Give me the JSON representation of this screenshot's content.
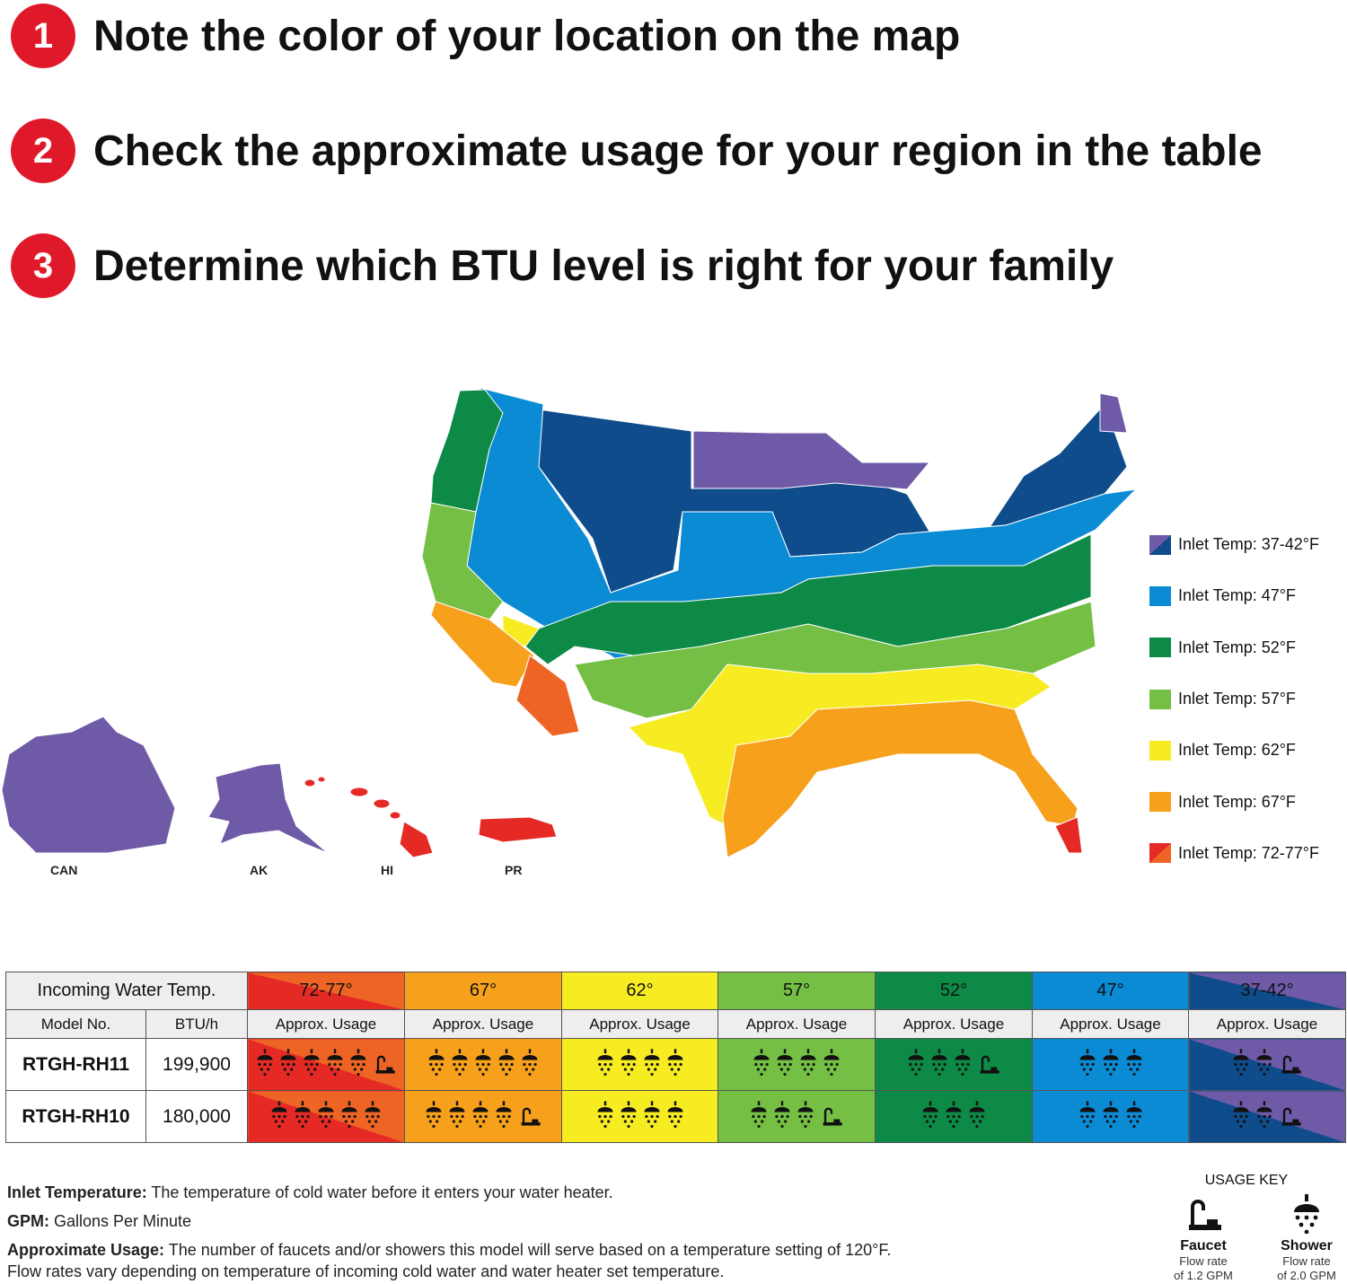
{
  "steps": [
    {
      "num": "1",
      "text": "Note the color of your location on the map"
    },
    {
      "num": "2",
      "text": "Check the approximate usage for your region in the table"
    },
    {
      "num": "3",
      "text": "Determine which BTU level is right for your family"
    }
  ],
  "colors": {
    "purple": "#6f5aa8",
    "navy": "#0f4c8c",
    "blue": "#0a8bd4",
    "dkgreen": "#0d8a45",
    "ltgreen": "#74bf44",
    "yellow": "#f7ec22",
    "orange": "#f6a01c",
    "redorange": "#ee6424",
    "red": "#e52a25",
    "step_red": "#e0192a"
  },
  "map": {
    "regions": [
      {
        "label": "CAN",
        "color": "purple"
      },
      {
        "label": "AK",
        "color": "purple"
      },
      {
        "label": "HI",
        "color": "red"
      },
      {
        "label": "PR",
        "color": "red"
      }
    ]
  },
  "legend": [
    {
      "label": "Inlet Temp: 37-42°F",
      "colors": [
        "purple",
        "navy"
      ]
    },
    {
      "label": "Inlet Temp: 47°F",
      "colors": [
        "blue"
      ]
    },
    {
      "label": "Inlet Temp: 52°F",
      "colors": [
        "dkgreen"
      ]
    },
    {
      "label": "Inlet Temp: 57°F",
      "colors": [
        "ltgreen"
      ]
    },
    {
      "label": "Inlet Temp: 62°F",
      "colors": [
        "yellow"
      ]
    },
    {
      "label": "Inlet Temp: 67°F",
      "colors": [
        "orange"
      ]
    },
    {
      "label": "Inlet Temp: 72-77°F",
      "colors": [
        "red",
        "redorange"
      ]
    }
  ],
  "table": {
    "incoming_label": "Incoming Water Temp.",
    "model_header": "Model No.",
    "btu_header": "BTU/h",
    "usage_header": "Approx. Usage",
    "temps": [
      {
        "label": "72-77°",
        "colors": [
          "red",
          "redorange"
        ]
      },
      {
        "label": "67°",
        "colors": [
          "orange"
        ]
      },
      {
        "label": "62°",
        "colors": [
          "yellow"
        ]
      },
      {
        "label": "57°",
        "colors": [
          "ltgreen"
        ]
      },
      {
        "label": "52°",
        "colors": [
          "dkgreen"
        ]
      },
      {
        "label": "47°",
        "colors": [
          "blue"
        ]
      },
      {
        "label": "37-42°",
        "colors": [
          "navy",
          "purple"
        ]
      }
    ],
    "rows": [
      {
        "model": "RTGH-RH11",
        "btu": "199,900",
        "usage": [
          {
            "showers": 5,
            "faucets": 1
          },
          {
            "showers": 5,
            "faucets": 0
          },
          {
            "showers": 4,
            "faucets": 0
          },
          {
            "showers": 4,
            "faucets": 0
          },
          {
            "showers": 3,
            "faucets": 1
          },
          {
            "showers": 3,
            "faucets": 0
          },
          {
            "showers": 2,
            "faucets": 1
          }
        ]
      },
      {
        "model": "RTGH-RH10",
        "btu": "180,000",
        "usage": [
          {
            "showers": 5,
            "faucets": 0
          },
          {
            "showers": 4,
            "faucets": 1
          },
          {
            "showers": 4,
            "faucets": 0
          },
          {
            "showers": 3,
            "faucets": 1
          },
          {
            "showers": 3,
            "faucets": 0
          },
          {
            "showers": 3,
            "faucets": 0
          },
          {
            "showers": 2,
            "faucets": 1
          }
        ]
      }
    ]
  },
  "notes": {
    "inlet_term": "Inlet Temperature:",
    "inlet_def": " The temperature of cold water before it enters your water heater.",
    "gpm_term": "GPM:",
    "gpm_def": " Gallons Per Minute",
    "usage_term": "Approximate Usage:",
    "usage_def": " The number of faucets and/or showers this model will serve based on a temperature setting of 120°F.",
    "usage_def2": "Flow rates vary depending on temperature of incoming cold water and water heater set temperature."
  },
  "usage_key": {
    "title": "USAGE KEY",
    "faucet": {
      "label": "Faucet",
      "line1": "Flow rate",
      "line2": "of 1.2 GPM"
    },
    "shower": {
      "label": "Shower",
      "line1": "Flow rate",
      "line2": "of 2.0 GPM"
    }
  }
}
